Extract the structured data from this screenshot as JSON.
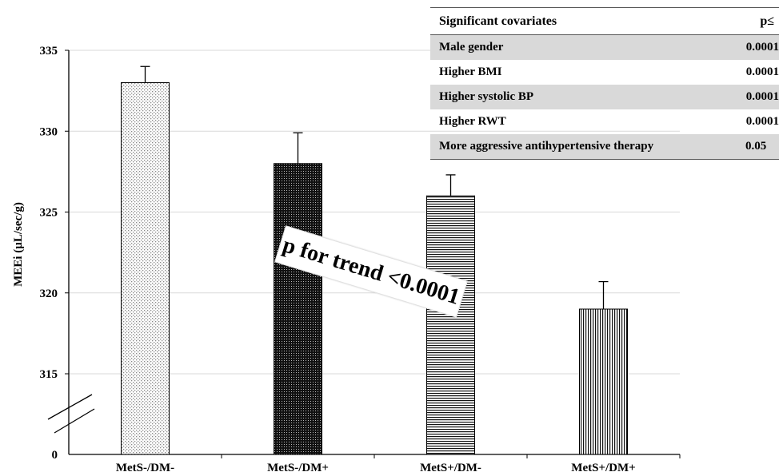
{
  "chart_data": {
    "type": "bar",
    "categories": [
      "MetS-/DM-",
      "MetS-/DM+",
      "MetS+/DM-",
      "MetS+/DM+"
    ],
    "values": [
      333,
      328,
      326,
      319
    ],
    "errors": [
      1.0,
      1.9,
      1.3,
      1.7
    ],
    "ylabel": "MEEi (µL/sec/g)",
    "xlabel": "",
    "ylim": [
      313,
      335
    ],
    "yticks": [
      "335",
      "330",
      "325",
      "320",
      "315"
    ],
    "y_break_label": "0",
    "axis_break": true,
    "grid": true,
    "bar_patterns": [
      "light-dots",
      "dark-dots",
      "horizontal-lines",
      "vertical-lines"
    ],
    "annotation": "p for trend <0.0001"
  },
  "table": {
    "headers": [
      "Significant  covariates",
      "p≤"
    ],
    "rows": [
      {
        "name": "Male gender",
        "p": "0.0001"
      },
      {
        "name": "Higher BMI",
        "p": "0.0001"
      },
      {
        "name": "Higher systolic BP",
        "p": "0.0001"
      },
      {
        "name": "Higher RWT",
        "p": "0.0001"
      },
      {
        "name": "More aggressive antihypertensive therapy",
        "p": "0.05"
      }
    ]
  },
  "colors": {
    "grid": "#d9d9d9",
    "axis": "#000000",
    "table_shade": "#d9d9d9"
  }
}
